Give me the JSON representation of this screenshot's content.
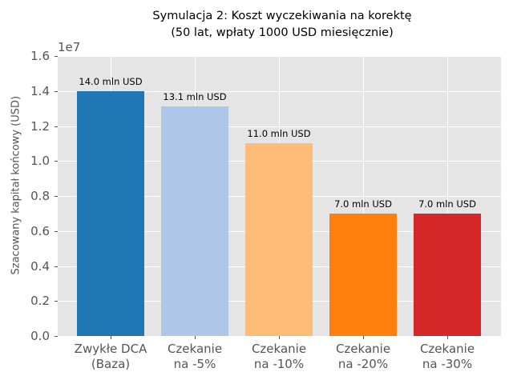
{
  "chart_data": {
    "type": "bar",
    "title": "Symulacja 2: Koszt wyczekiwania na korektę\n(50 lat, wpłaty 1000 USD miesięcznie)",
    "title_lines": [
      "Symulacja 2: Koszt wyczekiwania na korektę",
      "(50 lat, wpłaty 1000 USD miesięcznie)"
    ],
    "xlabel": "",
    "ylabel": "Szacowany kapitał końcowy (USD)",
    "y_offset_label": "1e7",
    "ylim": [
      0,
      16000000
    ],
    "yticks": [
      "0.0",
      "0.2",
      "0.4",
      "0.6",
      "0.8",
      "1.0",
      "1.2",
      "1.4",
      "1.6"
    ],
    "grid": true,
    "categories": [
      [
        "Zwykłe DCA",
        "(Baza)"
      ],
      [
        "Czekanie",
        "na -5%"
      ],
      [
        "Czekanie",
        "na -10%"
      ],
      [
        "Czekanie",
        "na -20%"
      ],
      [
        "Czekanie",
        "na -30%"
      ]
    ],
    "values": [
      14000000,
      13100000,
      11000000,
      7000000,
      7000000
    ],
    "data_labels": [
      "14.0 mln USD",
      "13.1 mln USD",
      "11.0 mln USD",
      "7.0 mln USD",
      "7.0 mln USD"
    ],
    "colors": [
      "#1f77b4",
      "#aec7e8",
      "#ffbb78",
      "#ff7f0e",
      "#d62728"
    ]
  }
}
